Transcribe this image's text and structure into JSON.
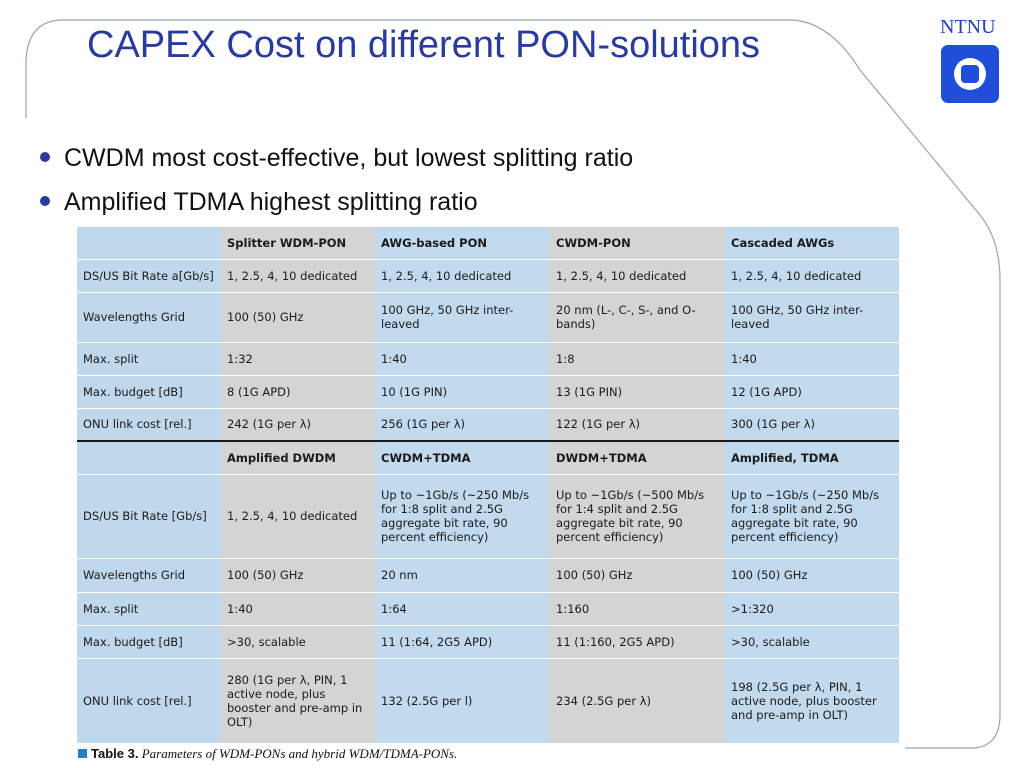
{
  "slide": {
    "title": "CAPEX Cost on different PON-solutions",
    "logo_text": "NTNU",
    "bullets": [
      "CWDM most cost-effective, but lowest splitting ratio",
      "Amplified TDMA highest splitting ratio"
    ]
  },
  "table": {
    "section1": {
      "headers": [
        "",
        "Splitter WDM-PON",
        "AWG-based PON",
        "CWDM-PON",
        "Cascaded AWGs"
      ],
      "rows": [
        [
          "DS/US Bit Rate a[Gb/s]",
          "1, 2.5, 4, 10 dedicated",
          "1, 2.5, 4, 10 dedicated",
          "1, 2.5, 4, 10 dedicated",
          "1, 2.5, 4, 10 dedicated"
        ],
        [
          "Wavelengths Grid",
          "100 (50) GHz",
          "100 GHz, 50 GHz inter-leaved",
          "20 nm (L-, C-, S-, and O-bands)",
          "100 GHz, 50 GHz inter-leaved"
        ],
        [
          "Max. split",
          "1:32",
          "1:40",
          "1:8",
          "1:40"
        ],
        [
          "Max. budget [dB]",
          "8 (1G APD)",
          "10 (1G PIN)",
          "13 (1G PIN)",
          "12 (1G APD)"
        ],
        [
          "ONU link cost [rel.]",
          "242 (1G per λ)",
          "256 (1G per λ)",
          "122 (1G per λ)",
          "300 (1G per λ)"
        ]
      ]
    },
    "section2": {
      "headers": [
        "",
        "Amplified DWDM",
        "CWDM+TDMA",
        "DWDM+TDMA",
        "Amplified, TDMA"
      ],
      "rows": [
        [
          "DS/US Bit Rate [Gb/s]",
          "1, 2.5, 4, 10 dedicated",
          "Up to ~1Gb/s (~250 Mb/s for 1:8 split and 2.5G aggregate bit rate, 90 percent efficiency)",
          "Up to ~1Gb/s (~500 Mb/s for 1:4 split and 2.5G aggregate bit rate, 90 percent efficiency)",
          "Up to ~1Gb/s (~250 Mb/s for 1:8 split and 2.5G aggregate bit rate, 90 percent efficiency)"
        ],
        [
          "Wavelengths Grid",
          "100 (50) GHz",
          "20 nm",
          "100 (50) GHz",
          "100 (50) GHz"
        ],
        [
          "Max. split",
          "1:40",
          "1:64",
          "1:160",
          ">1:320"
        ],
        [
          "Max. budget [dB]",
          ">30, scalable",
          "11 (1:64, 2G5 APD)",
          "11 (1:160, 2G5 APD)",
          ">30, scalable"
        ],
        [
          "ONU link cost [rel.]",
          "280 (1G per λ, PIN, 1 active node, plus booster and pre-amp in OLT)",
          "132 (2.5G per l)",
          "234 (2.5G per λ)",
          "198 (2.5G per λ, PIN, 1 active node, plus booster and pre-amp in OLT)"
        ]
      ]
    },
    "caption_label": "Table 3.",
    "caption_text": "Parameters of WDM-PONs and hybrid WDM/TDMA-PONs."
  }
}
